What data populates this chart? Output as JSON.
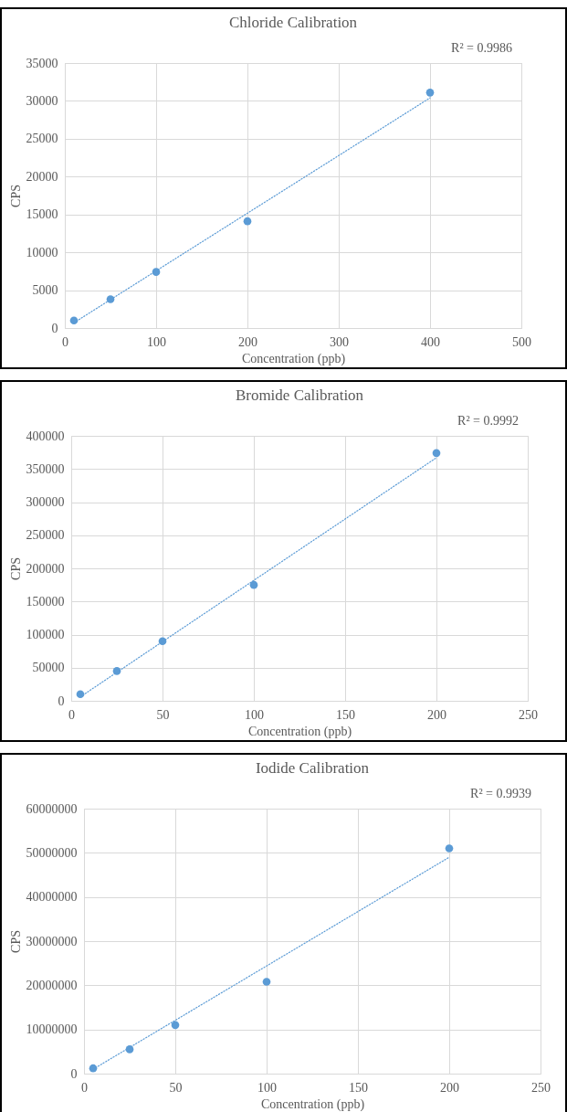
{
  "chart_data": [
    {
      "type": "scatter",
      "title": "Chloride Calibration",
      "xlabel": "Concentration (ppb)",
      "ylabel": "CPS",
      "annotations": [
        "R² = 0.9986"
      ],
      "xlim": [
        0,
        500
      ],
      "xticks": [
        0,
        100,
        200,
        300,
        400,
        500
      ],
      "ylim": [
        0,
        35000
      ],
      "yticks": [
        0,
        5000,
        10000,
        15000,
        20000,
        25000,
        30000,
        35000
      ],
      "grid": true,
      "series": [
        {
          "x": [
            10,
            50,
            100,
            200,
            400
          ],
          "values": [
            1000,
            3800,
            7400,
            14100,
            31100
          ],
          "color": "#5b9bd5",
          "marker": "circle"
        },
        {
          "type": "line",
          "x": [
            10,
            400
          ],
          "values": [
            700,
            30400
          ],
          "color": "#5b9bd5",
          "line_style": "dotted",
          "marker": "none"
        }
      ]
    },
    {
      "type": "scatter",
      "title": "Bromide Calibration",
      "xlabel": "Concentration (ppb)",
      "ylabel": "CPS",
      "annotations": [
        "R² = 0.9992"
      ],
      "xlim": [
        0,
        250
      ],
      "xticks": [
        0,
        50,
        100,
        150,
        200,
        250
      ],
      "ylim": [
        0,
        400000
      ],
      "yticks": [
        0,
        50000,
        100000,
        150000,
        200000,
        250000,
        300000,
        350000,
        400000
      ],
      "grid": true,
      "series": [
        {
          "x": [
            5,
            25,
            50,
            100,
            200
          ],
          "values": [
            10000,
            45000,
            90000,
            175000,
            374000
          ],
          "color": "#5b9bd5",
          "marker": "circle"
        },
        {
          "type": "line",
          "x": [
            5,
            200
          ],
          "values": [
            6000,
            367000
          ],
          "color": "#5b9bd5",
          "line_style": "dotted",
          "marker": "none"
        }
      ]
    },
    {
      "type": "scatter",
      "title": "Iodide Calibration",
      "xlabel": "Concentration (ppb)",
      "ylabel": "CPS",
      "annotations": [
        "R² = 0.9939"
      ],
      "xlim": [
        0,
        250
      ],
      "xticks": [
        0,
        50,
        100,
        150,
        200,
        250
      ],
      "ylim": [
        0,
        60000000
      ],
      "yticks": [
        0,
        10000000,
        20000000,
        30000000,
        40000000,
        50000000,
        60000000
      ],
      "grid": true,
      "series": [
        {
          "x": [
            5,
            25,
            50,
            100,
            200
          ],
          "values": [
            1200000,
            5500000,
            11000000,
            20800000,
            51000000
          ],
          "color": "#5b9bd5",
          "marker": "circle"
        },
        {
          "type": "line",
          "x": [
            5,
            200
          ],
          "values": [
            1000000,
            49000000
          ],
          "color": "#5b9bd5",
          "line_style": "dotted",
          "marker": "none"
        }
      ]
    }
  ]
}
